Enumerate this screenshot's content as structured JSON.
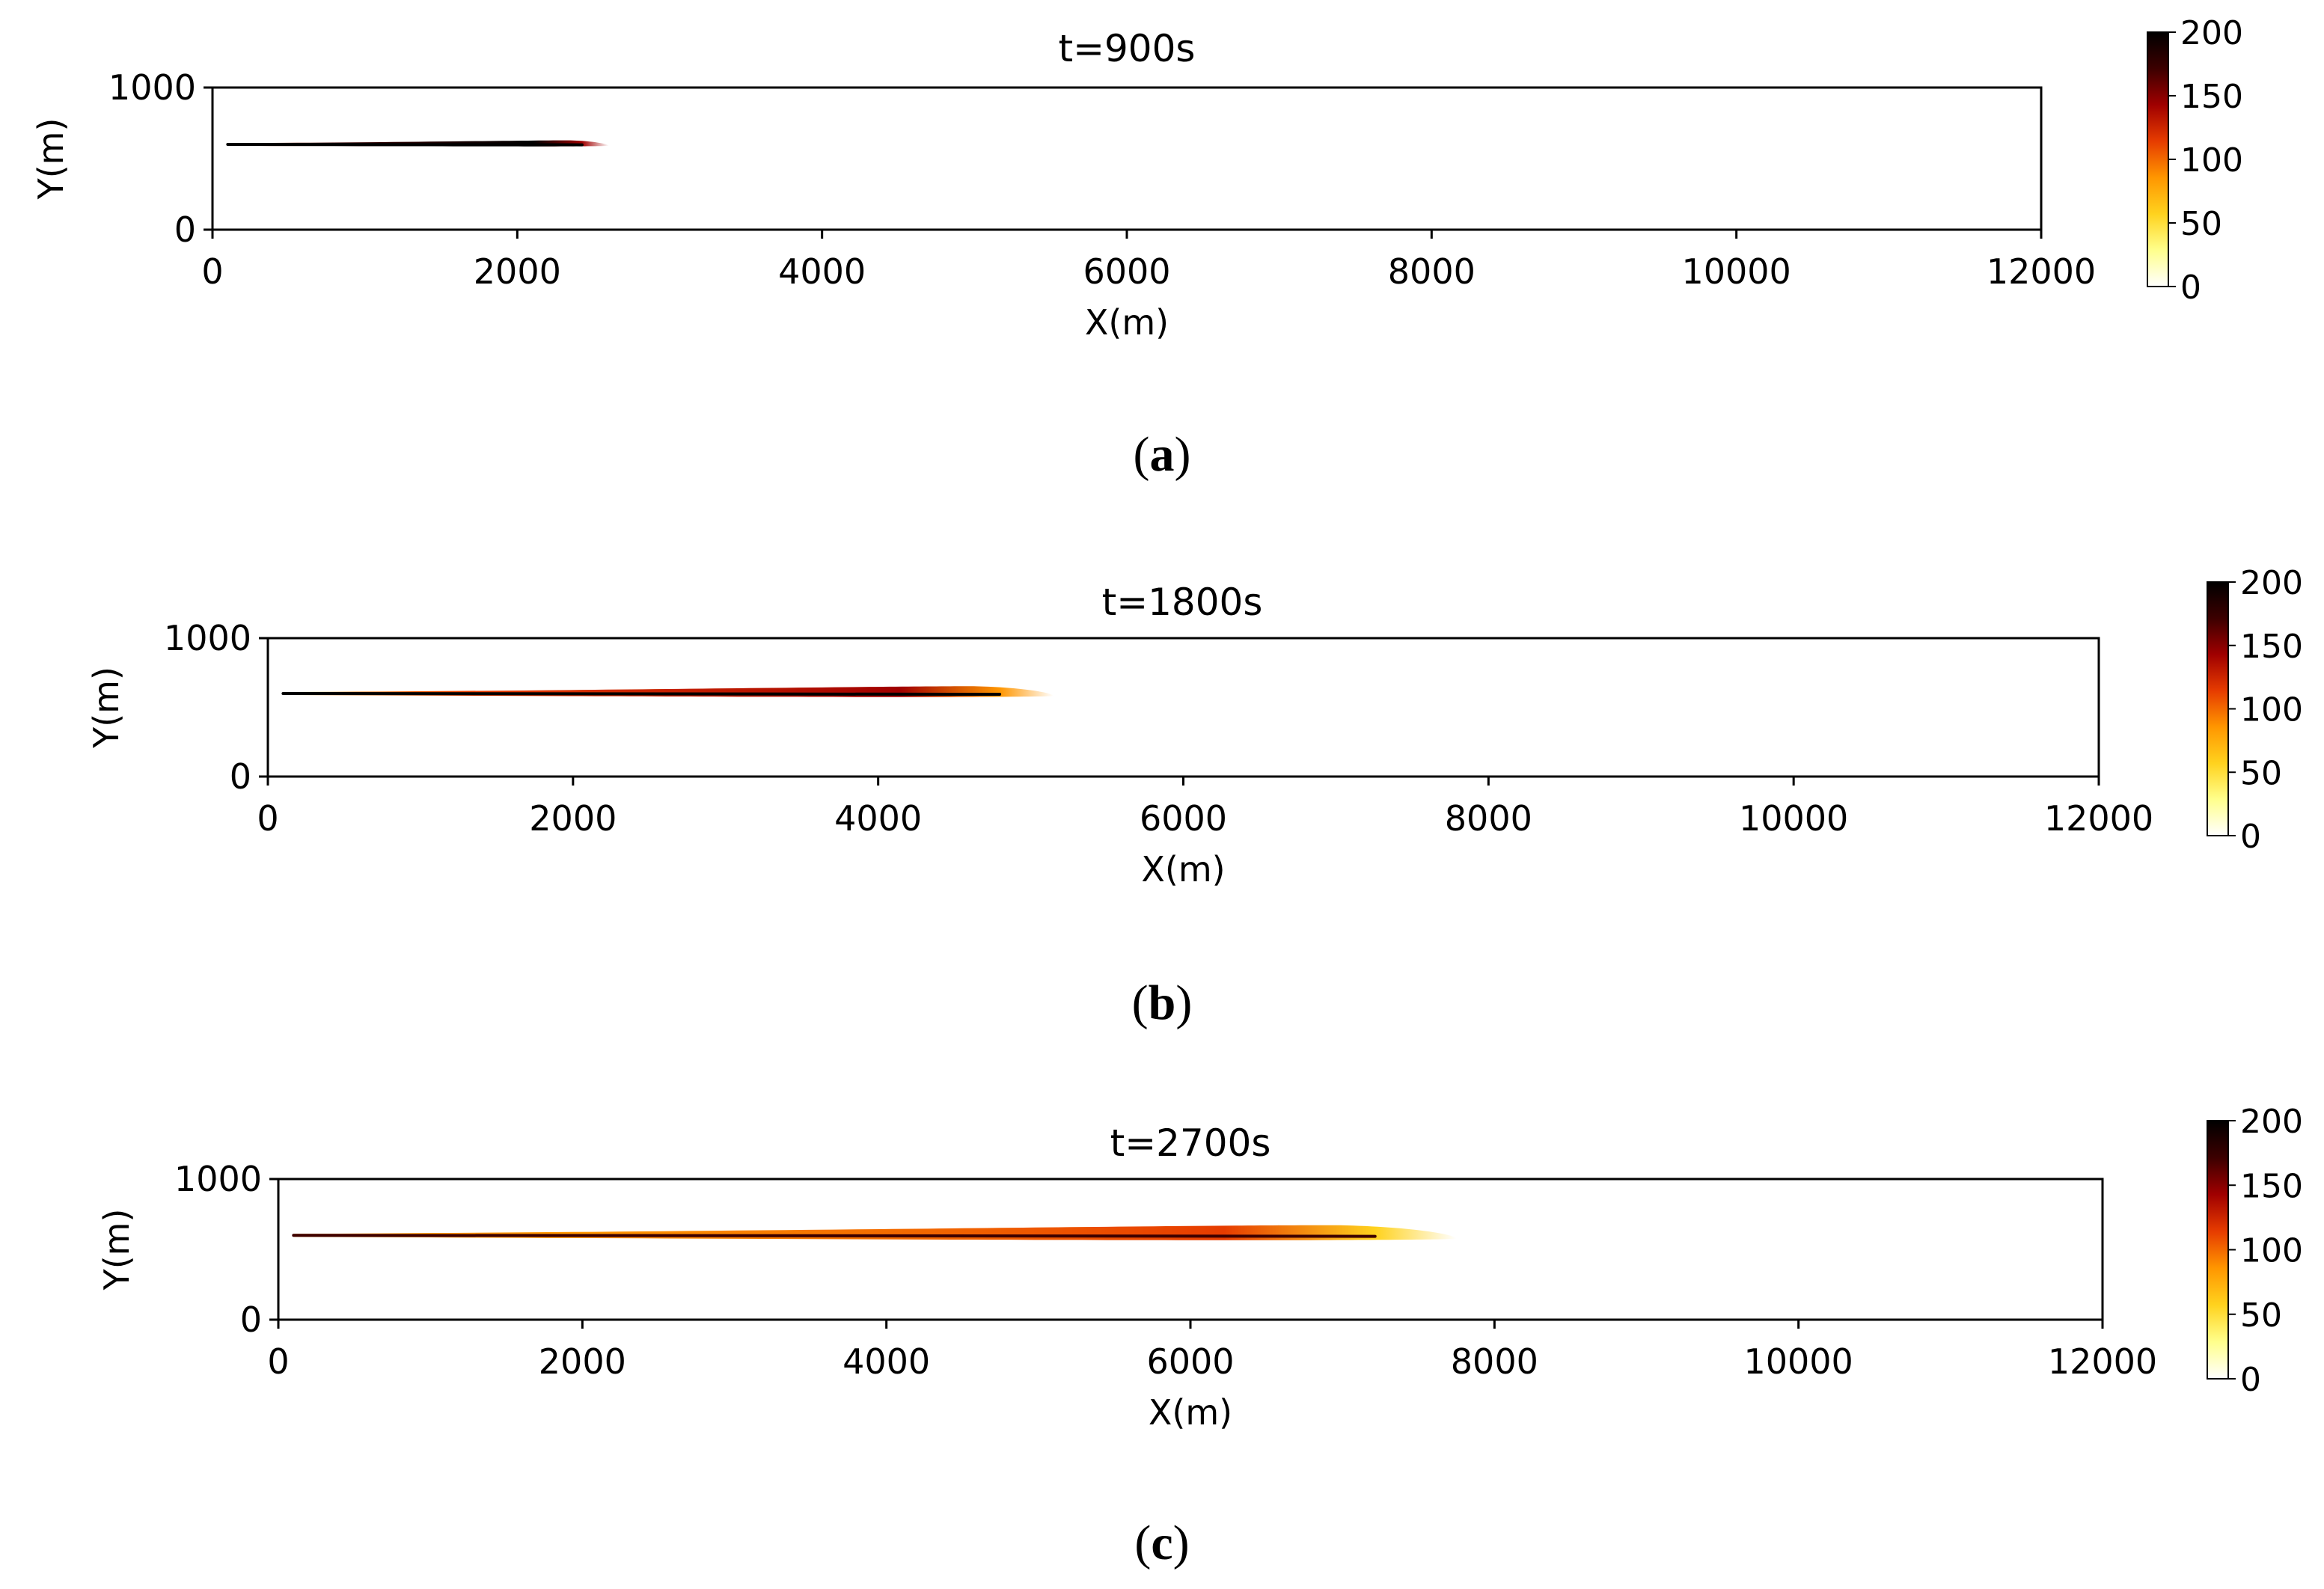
{
  "figure": {
    "colors": {
      "axis": "#000000",
      "background": "#ffffff",
      "cmap": [
        "#ffffff",
        "#ffff8c",
        "#ffd21e",
        "#ff9600",
        "#e63c00",
        "#a00000",
        "#3c0000",
        "#000000"
      ]
    },
    "colormap_name": "hot_r"
  },
  "chart_data": [
    {
      "type": "heatmap",
      "title": "t=900s",
      "xlabel": "X(m)",
      "ylabel": "Y(m)",
      "xlim": [
        0,
        12000
      ],
      "ylim": [
        0,
        1000
      ],
      "xticks": [
        "0",
        "2000",
        "4000",
        "6000",
        "8000",
        "10000",
        "12000"
      ],
      "yticks": [
        "0",
        "1000"
      ],
      "colorbar": {
        "min": 0,
        "max": 200,
        "ticks": [
          "0",
          "50",
          "100",
          "150",
          "200"
        ]
      },
      "plume": {
        "x_start": 100,
        "x_end": 2600,
        "y_center": 600,
        "half_width_max": 30,
        "peak_value": 200,
        "centerline_value": 200
      },
      "caption": "a"
    },
    {
      "type": "heatmap",
      "title": "t=1800s",
      "xlabel": "X(m)",
      "ylabel": "Y(m)",
      "xlim": [
        0,
        12000
      ],
      "ylim": [
        0,
        1000
      ],
      "xticks": [
        "0",
        "2000",
        "4000",
        "6000",
        "8000",
        "10000",
        "12000"
      ],
      "yticks": [
        "0",
        "1000"
      ],
      "colorbar": {
        "min": 0,
        "max": 200,
        "ticks": [
          "0",
          "50",
          "100",
          "150",
          "200"
        ]
      },
      "plume": {
        "x_start": 100,
        "x_end": 5150,
        "y_center": 600,
        "half_width_max": 55,
        "peak_value": 140,
        "centerline_value": 190
      },
      "caption": "b"
    },
    {
      "type": "heatmap",
      "title": "t=2700s",
      "xlabel": "X(m)",
      "ylabel": "Y(m)",
      "xlim": [
        0,
        12000
      ],
      "ylim": [
        0,
        1000
      ],
      "xticks": [
        "0",
        "2000",
        "4000",
        "6000",
        "8000",
        "10000",
        "12000"
      ],
      "yticks": [
        "0",
        "1000"
      ],
      "colorbar": {
        "min": 0,
        "max": 200,
        "ticks": [
          "0",
          "50",
          "100",
          "150",
          "200"
        ]
      },
      "plume": {
        "x_start": 100,
        "x_end": 7750,
        "y_center": 600,
        "half_width_max": 75,
        "peak_value": 100,
        "centerline_value": 160
      },
      "caption": "c"
    }
  ],
  "captions": [
    {
      "open": "(",
      "label": "a",
      "close": ")"
    },
    {
      "open": "(",
      "label": "b",
      "close": ")"
    },
    {
      "open": "(",
      "label": "c",
      "close": ")"
    }
  ]
}
